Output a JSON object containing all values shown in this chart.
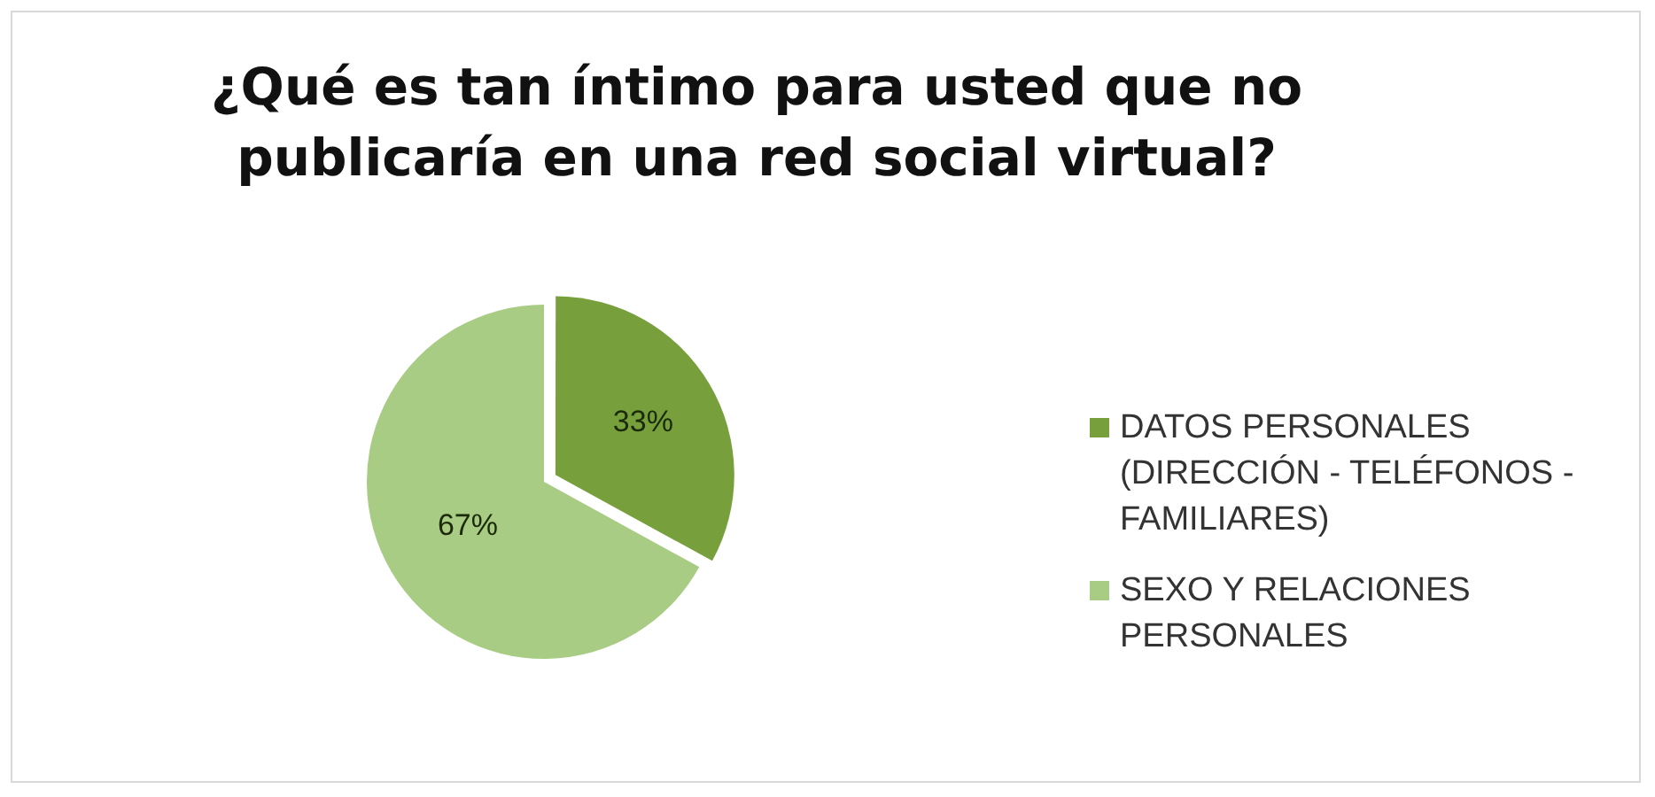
{
  "chart_data": {
    "type": "pie",
    "title": "¿Qué es tan íntimo para usted que no publicaría en una red social virtual?",
    "categories": [
      "DATOS PERSONALES (DIRECCIÓN - TELÉFONOS - FAMILIARES)",
      "SEXO Y RELACIONES PERSONALES"
    ],
    "values": [
      33,
      67
    ],
    "colors": [
      "#77a03c",
      "#a9cc84"
    ],
    "value_labels": [
      "33%",
      "67%"
    ],
    "legend": "right"
  }
}
